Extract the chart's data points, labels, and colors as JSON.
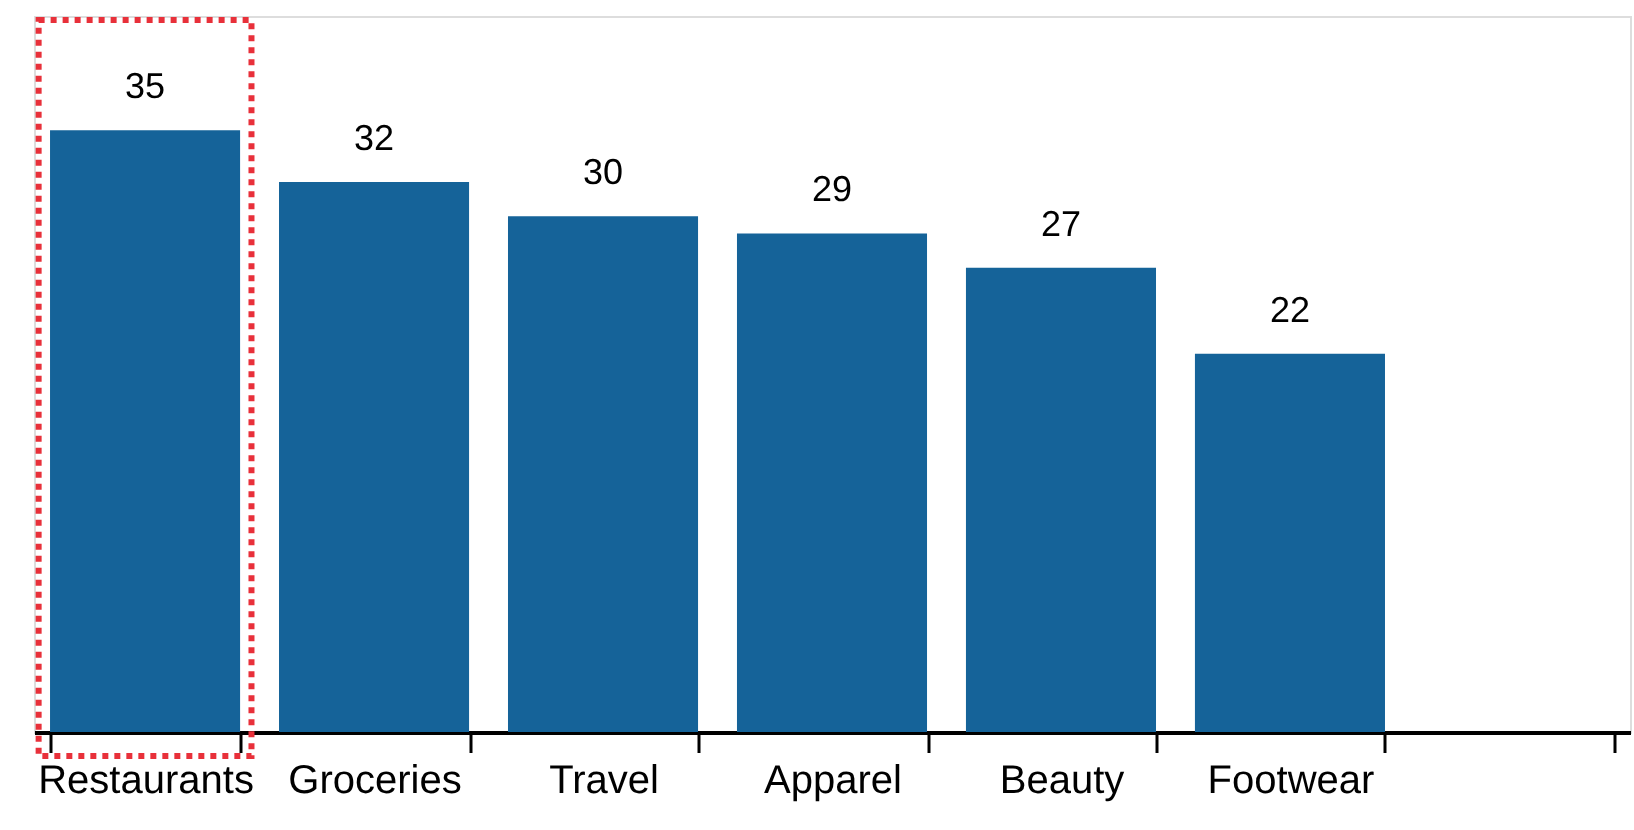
{
  "chart_data": {
    "type": "bar",
    "categories": [
      "Restaurants",
      "Groceries",
      "Travel",
      "Apparel",
      "Beauty",
      "Footwear",
      null
    ],
    "values": [
      35,
      32,
      30,
      29,
      27,
      22,
      null
    ],
    "color": "#156399",
    "data_labels": true,
    "grid": false,
    "tick_labels": "x"
  }
}
